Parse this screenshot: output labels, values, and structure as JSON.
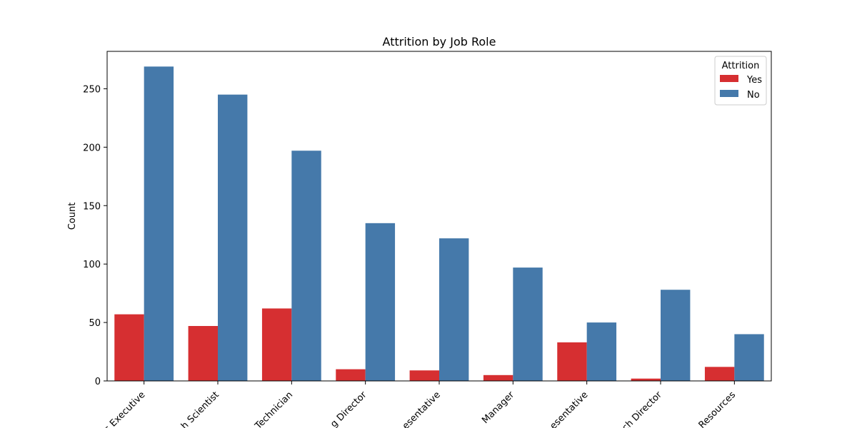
{
  "chart_data": {
    "type": "bar",
    "title": "Attrition by Job Role",
    "xlabel": "",
    "ylabel": "Count",
    "ylim": [
      0,
      282
    ],
    "yticks": [
      0,
      50,
      100,
      150,
      200,
      250
    ],
    "categories": [
      "s Executive",
      "h Scientist",
      "Technician",
      "g Director",
      "esentative",
      "Manager",
      "esentative",
      "ch Director",
      "Resources"
    ],
    "series": [
      {
        "name": "Yes",
        "color": "#d62f31",
        "values": [
          57,
          47,
          62,
          10,
          9,
          5,
          33,
          2,
          12
        ]
      },
      {
        "name": "No",
        "color": "#4579aa",
        "values": [
          269,
          245,
          197,
          135,
          122,
          97,
          50,
          78,
          40
        ]
      }
    ],
    "legend": {
      "title": "Attrition",
      "position": "top-right"
    },
    "grid": false
  }
}
